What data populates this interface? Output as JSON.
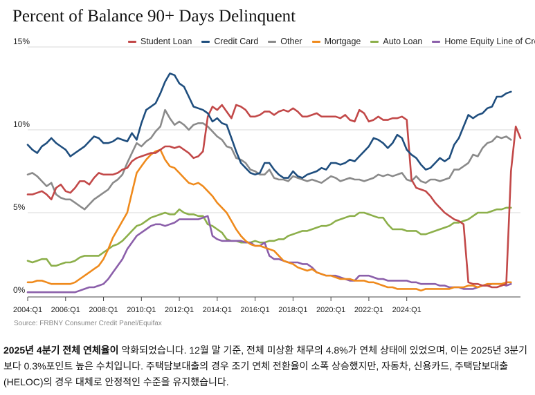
{
  "chart_data": {
    "type": "line",
    "title": "Percent of Balance 90+ Days Delinquent",
    "xlabel": "",
    "ylabel": "",
    "ylim": [
      0,
      15
    ],
    "y_ticks": [
      "0%",
      "5%",
      "10%",
      "15%"
    ],
    "y_tick_values": [
      0,
      5,
      10,
      15
    ],
    "x_ticks": [
      "2004:Q1",
      "2006:Q1",
      "2008:Q1",
      "2010:Q1",
      "2012:Q1",
      "2014:Q1",
      "2016:Q1",
      "2018:Q1",
      "2020:Q1",
      "2022:Q1",
      "2024:Q1"
    ],
    "x_tick_index": [
      0,
      8,
      16,
      24,
      32,
      40,
      48,
      56,
      64,
      72,
      80
    ],
    "x_start": "2003:Q1",
    "grid": "horizontal",
    "legend_position": "top",
    "series": [
      {
        "name": "Student Loan",
        "color": "#c24848",
        "values": [
          6.1,
          6.1,
          6.2,
          6.3,
          6.1,
          5.8,
          6.5,
          6.7,
          6.3,
          6.2,
          6.5,
          6.9,
          6.9,
          6.7,
          7.1,
          7.4,
          7.3,
          7.3,
          7.3,
          7.4,
          7.6,
          7.7,
          8.1,
          8.3,
          8.4,
          8.5,
          8.6,
          8.6,
          8.8,
          9.0,
          9.0,
          8.9,
          9.0,
          8.8,
          8.6,
          8.3,
          8.4,
          8.7,
          10.8,
          11.4,
          11.2,
          11.5,
          11.1,
          10.7,
          11.5,
          11.4,
          11.2,
          10.8,
          10.8,
          10.9,
          11.1,
          11.1,
          10.9,
          11.1,
          11.2,
          11.1,
          11.3,
          11.1,
          10.8,
          10.8,
          10.9,
          11.0,
          10.8,
          10.8,
          10.8,
          10.8,
          10.7,
          10.9,
          10.6,
          10.5,
          11.2,
          11.0,
          10.5,
          10.6,
          10.8,
          10.6,
          10.6,
          10.7,
          10.7,
          10.8,
          10.6,
          7.0,
          6.5,
          6.4,
          6.3,
          6.0,
          5.6,
          5.3,
          5.0,
          4.8,
          4.6,
          4.5,
          4.3,
          0.8,
          0.7,
          0.7,
          0.6,
          0.6,
          0.5,
          0.5,
          0.6,
          0.7,
          7.5,
          10.2,
          9.5
        ]
      },
      {
        "name": "Credit Card",
        "color": "#1f4e7e",
        "values": [
          9.1,
          8.8,
          8.6,
          9.0,
          9.2,
          9.5,
          9.2,
          9.0,
          8.8,
          8.4,
          8.6,
          8.8,
          9.0,
          9.3,
          9.6,
          9.5,
          9.2,
          9.2,
          9.3,
          9.5,
          9.4,
          9.3,
          9.8,
          9.4,
          10.4,
          11.2,
          11.4,
          11.6,
          12.2,
          12.9,
          13.4,
          13.3,
          12.8,
          12.6,
          12.0,
          11.4,
          11.3,
          11.2,
          11.0,
          10.5,
          10.7,
          10.4,
          10.3,
          9.5,
          8.7,
          8.0,
          7.7,
          7.4,
          7.3,
          7.4,
          8.0,
          8.0,
          7.6,
          7.3,
          7.1,
          7.1,
          7.5,
          7.2,
          7.1,
          7.3,
          7.4,
          7.5,
          7.7,
          7.6,
          8.0,
          8.0,
          7.9,
          8.0,
          8.2,
          8.1,
          8.4,
          8.7,
          9.0,
          9.5,
          9.4,
          9.2,
          8.9,
          9.2,
          9.7,
          9.5,
          8.8,
          8.5,
          8.3,
          7.9,
          7.6,
          7.7,
          8.0,
          8.3,
          8.1,
          8.3,
          9.1,
          9.5,
          10.2,
          10.9,
          10.7,
          10.9,
          11.0,
          11.3,
          11.4,
          12.0,
          12.0,
          12.2,
          12.3
        ]
      },
      {
        "name": "Other",
        "color": "#8a8a8a",
        "values": [
          7.3,
          7.4,
          7.2,
          6.9,
          6.6,
          6.8,
          6.1,
          5.9,
          5.8,
          5.8,
          5.6,
          5.4,
          5.2,
          5.5,
          5.8,
          6.0,
          6.2,
          6.4,
          6.8,
          7.0,
          7.3,
          8.0,
          8.6,
          9.2,
          9.0,
          9.3,
          9.5,
          9.9,
          10.2,
          11.2,
          10.7,
          10.3,
          10.5,
          10.3,
          10.0,
          10.3,
          10.4,
          10.4,
          10.2,
          9.9,
          9.6,
          9.4,
          9.0,
          8.9,
          8.3,
          8.2,
          8.0,
          7.6,
          7.5,
          7.3,
          7.3,
          7.6,
          7.1,
          7.0,
          7.0,
          6.9,
          7.2,
          7.1,
          7.0,
          6.9,
          7.0,
          6.9,
          6.8,
          7.0,
          7.2,
          7.1,
          6.9,
          7.0,
          7.1,
          7.0,
          7.0,
          6.9,
          7.0,
          7.1,
          7.3,
          7.2,
          7.3,
          7.2,
          7.3,
          7.4,
          7.0,
          6.9,
          7.2,
          6.9,
          6.8,
          7.0,
          7.0,
          6.9,
          7.0,
          7.1,
          7.6,
          7.6,
          7.8,
          8.0,
          8.5,
          8.4,
          8.9,
          9.2,
          9.3,
          9.6,
          9.5,
          9.6,
          9.4
        ]
      },
      {
        "name": "Mortgage",
        "color": "#ef8a1c",
        "values": [
          0.8,
          0.8,
          0.9,
          0.9,
          0.8,
          0.7,
          0.7,
          0.7,
          0.7,
          0.7,
          0.8,
          1.0,
          1.2,
          1.4,
          1.6,
          1.8,
          2.2,
          2.8,
          3.5,
          4.0,
          4.5,
          5.0,
          6.2,
          7.4,
          7.8,
          8.2,
          8.5,
          8.7,
          8.8,
          8.2,
          7.8,
          7.7,
          7.4,
          7.1,
          6.8,
          6.7,
          6.8,
          6.6,
          6.3,
          6.0,
          5.6,
          5.3,
          5.0,
          4.5,
          4.0,
          3.6,
          3.3,
          3.1,
          3.0,
          3.0,
          2.9,
          2.8,
          2.7,
          2.4,
          2.1,
          2.0,
          1.9,
          1.7,
          1.6,
          1.5,
          1.6,
          1.4,
          1.3,
          1.2,
          1.2,
          1.1,
          1.0,
          1.0,
          1.0,
          0.9,
          0.9,
          0.9,
          0.8,
          0.8,
          0.7,
          0.6,
          0.5,
          0.5,
          0.4,
          0.4,
          0.4,
          0.4,
          0.4,
          0.3,
          0.4,
          0.4,
          0.4,
          0.4,
          0.4,
          0.4,
          0.5,
          0.5,
          0.5,
          0.6,
          0.6,
          0.5,
          0.6,
          0.7,
          0.7,
          0.7,
          0.7,
          0.8,
          0.8
        ]
      },
      {
        "name": "Auto Loan",
        "color": "#8caf4a",
        "values": [
          2.1,
          2.0,
          2.1,
          2.2,
          2.2,
          1.8,
          1.8,
          1.9,
          2.0,
          2.0,
          2.1,
          2.3,
          2.4,
          2.4,
          2.4,
          2.4,
          2.6,
          2.8,
          3.0,
          3.1,
          3.3,
          3.6,
          3.9,
          4.2,
          4.3,
          4.5,
          4.7,
          4.8,
          4.9,
          5.0,
          4.9,
          4.9,
          5.2,
          5.0,
          4.9,
          4.9,
          4.8,
          4.8,
          4.3,
          4.2,
          4.0,
          3.8,
          3.4,
          3.3,
          3.3,
          3.2,
          3.2,
          3.2,
          3.3,
          3.2,
          3.2,
          3.3,
          3.3,
          3.4,
          3.4,
          3.6,
          3.7,
          3.8,
          3.9,
          3.9,
          4.0,
          4.1,
          4.2,
          4.2,
          4.3,
          4.5,
          4.6,
          4.7,
          4.8,
          4.8,
          5.0,
          5.0,
          4.9,
          4.8,
          4.7,
          4.7,
          4.3,
          4.0,
          4.0,
          4.0,
          3.9,
          3.9,
          3.9,
          3.7,
          3.7,
          3.8,
          3.9,
          4.0,
          4.1,
          4.2,
          4.4,
          4.4,
          4.5,
          4.6,
          4.8,
          5.0,
          5.0,
          5.0,
          5.1,
          5.2,
          5.2,
          5.3,
          5.3
        ]
      },
      {
        "name": "Home Equity Line of Credit",
        "color": "#8b5faa",
        "values": [
          0.2,
          0.2,
          0.2,
          0.2,
          0.2,
          0.2,
          0.2,
          0.2,
          0.2,
          0.2,
          0.2,
          0.3,
          0.4,
          0.5,
          0.5,
          0.6,
          0.7,
          1.0,
          1.4,
          1.8,
          2.2,
          2.8,
          3.2,
          3.6,
          3.8,
          4.0,
          4.2,
          4.3,
          4.3,
          4.2,
          4.3,
          4.4,
          4.6,
          4.6,
          4.6,
          4.6,
          4.6,
          4.7,
          4.8,
          3.6,
          3.4,
          3.3,
          3.3,
          3.3,
          3.3,
          3.3,
          3.2,
          3.2,
          3.0,
          3.0,
          3.2,
          2.4,
          2.2,
          2.2,
          2.1,
          2.0,
          2.0,
          2.0,
          1.9,
          1.9,
          1.7,
          1.4,
          1.3,
          1.2,
          1.2,
          1.2,
          1.1,
          1.0,
          0.9,
          0.9,
          1.2,
          1.2,
          1.2,
          1.1,
          1.0,
          1.0,
          0.9,
          0.9,
          0.9,
          0.9,
          0.9,
          0.8,
          0.8,
          0.7,
          0.7,
          0.7,
          0.7,
          0.6,
          0.6,
          0.5,
          0.5,
          0.5,
          0.4,
          0.4,
          0.4,
          0.5,
          0.6,
          0.6,
          0.7,
          0.7,
          0.7,
          0.6,
          0.7
        ]
      }
    ],
    "source": "Source: FRBNY Consumer Credit Panel/Equifax"
  },
  "caption": {
    "bold": "2025년 4분기 전체 연체율이",
    "rest": " 악화되었습니다. 12월 말 기준, 전체 미상환 채무의 4.8%가 연체 상태에 있었으며, 이는 2025년 3분기보다 0.3%포인트 높은 수치입니다. 주택담보대출의 경우 조기 연체 전환율이 소폭 상승했지만, 자동차, 신용카드, 주택담보대출(HELOC)의 경우 대체로 안정적인 수준을 유지했습니다."
  }
}
